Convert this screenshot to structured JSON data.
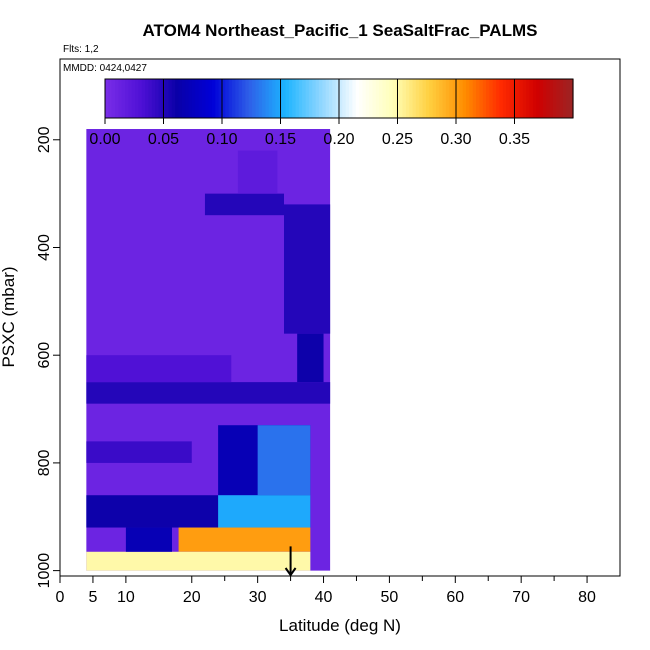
{
  "chart_data": {
    "type": "heatmap",
    "title": "ATOM4 Northeast_Pacific_1 SeaSaltFrac_PALMS",
    "flights_note": "Flts: 1,2",
    "dates_note": "MMDD: 0424,0427",
    "xlabel": "Latitude (deg N)",
    "ylabel": "PSXC (mbar)",
    "xlim": [
      0,
      85
    ],
    "ylim": [
      1010,
      50
    ],
    "y_reversed": true,
    "x_ticks": [
      0,
      5,
      10,
      20,
      30,
      40,
      50,
      60,
      70,
      80
    ],
    "y_ticks": [
      200,
      400,
      600,
      800,
      1000
    ],
    "grid": false,
    "colorbar": {
      "min": 0.0,
      "max": 0.4,
      "ticks": [
        "0.00",
        "0.05",
        "0.10",
        "0.15",
        "0.20",
        "0.25",
        "0.30",
        "0.35"
      ],
      "tick_values": [
        0.0,
        0.05,
        0.1,
        0.15,
        0.2,
        0.25,
        0.3,
        0.35
      ],
      "colors": [
        "#7a2ee8",
        "#4f10d6",
        "#0a00a8",
        "#0000d8",
        "#2e5fe8",
        "#1cb4ff",
        "#8fd6ff",
        "#ffffff",
        "#ffffb8",
        "#ffd040",
        "#ff8c00",
        "#ff2a00",
        "#d00000",
        "#9c2424"
      ]
    },
    "cells": [
      {
        "lat": [
          4,
          41
        ],
        "p": [
          180,
          1000
        ],
        "v": 0.01
      },
      {
        "lat": [
          4,
          41
        ],
        "p": [
          650,
          690
        ],
        "v": 0.05
      },
      {
        "lat": [
          4,
          26
        ],
        "p": [
          600,
          650
        ],
        "v": 0.03
      },
      {
        "lat": [
          4,
          38
        ],
        "p": [
          860,
          920
        ],
        "v": 0.06
      },
      {
        "lat": [
          4,
          20
        ],
        "p": [
          760,
          800
        ],
        "v": 0.04
      },
      {
        "lat": [
          24,
          38
        ],
        "p": [
          730,
          860
        ],
        "v": 0.07
      },
      {
        "lat": [
          30,
          38
        ],
        "p": [
          730,
          860
        ],
        "v": 0.13
      },
      {
        "lat": [
          24,
          38
        ],
        "p": [
          860,
          920
        ],
        "v": 0.15
      },
      {
        "lat": [
          18,
          38
        ],
        "p": [
          920,
          965
        ],
        "v": 0.3
      },
      {
        "lat": [
          4,
          38
        ],
        "p": [
          965,
          1000
        ],
        "v": 0.25
      },
      {
        "lat": [
          10,
          17
        ],
        "p": [
          920,
          965
        ],
        "v": 0.07
      },
      {
        "lat": [
          34,
          41
        ],
        "p": [
          320,
          560
        ],
        "v": 0.05
      },
      {
        "lat": [
          36,
          40
        ],
        "p": [
          560,
          650
        ],
        "v": 0.06
      },
      {
        "lat": [
          22,
          34
        ],
        "p": [
          300,
          340
        ],
        "v": 0.05
      },
      {
        "lat": [
          27,
          33
        ],
        "p": [
          220,
          300
        ],
        "v": 0.02
      }
    ],
    "arrow_latitude": 35
  }
}
